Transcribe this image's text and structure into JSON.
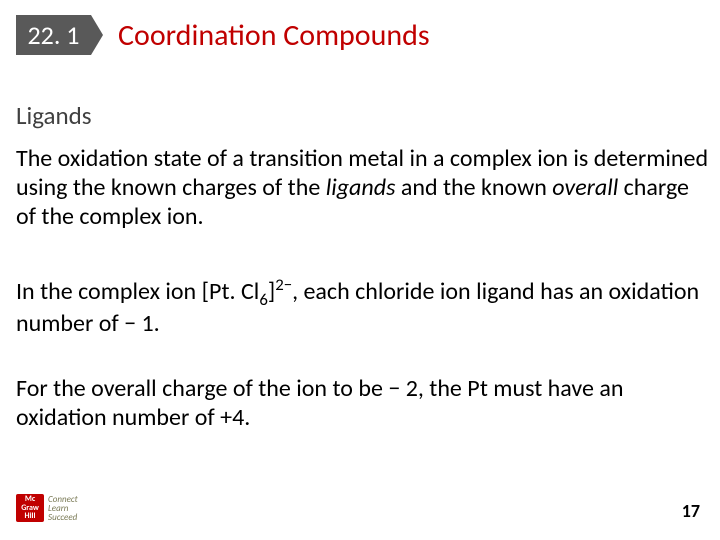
{
  "section": {
    "number": "22. 1",
    "title": "Coordination Compounds"
  },
  "subheading": "Ligands",
  "paragraphs": {
    "p1_a": "The oxidation state of a transition metal in a complex ion is determined using the known charges of the ",
    "p1_em": "ligands",
    "p1_b": " and the known ",
    "p1_em2": "overall",
    "p1_c": " charge of the complex ion.",
    "p2_a": "In the complex ion [Pt. Cl",
    "p2_sub": "6",
    "p2_b": "]",
    "p2_sup": "2−",
    "p2_c": ", each chloride ion ligand has an oxidation number of − 1.",
    "p3": "For the overall charge of the ion to be − 2, the Pt must have an oxidation number of +4."
  },
  "logo": {
    "line1": "Mc",
    "line2": "Graw",
    "line3": "Hill",
    "tag1": "Connect",
    "tag2": "Learn",
    "tag3": "Succeed"
  },
  "page_number": "17",
  "colors": {
    "badge_bg": "#595959",
    "title_color": "#c00000",
    "subhead_color": "#404040",
    "body_color": "#000000",
    "bg": "#ffffff"
  }
}
